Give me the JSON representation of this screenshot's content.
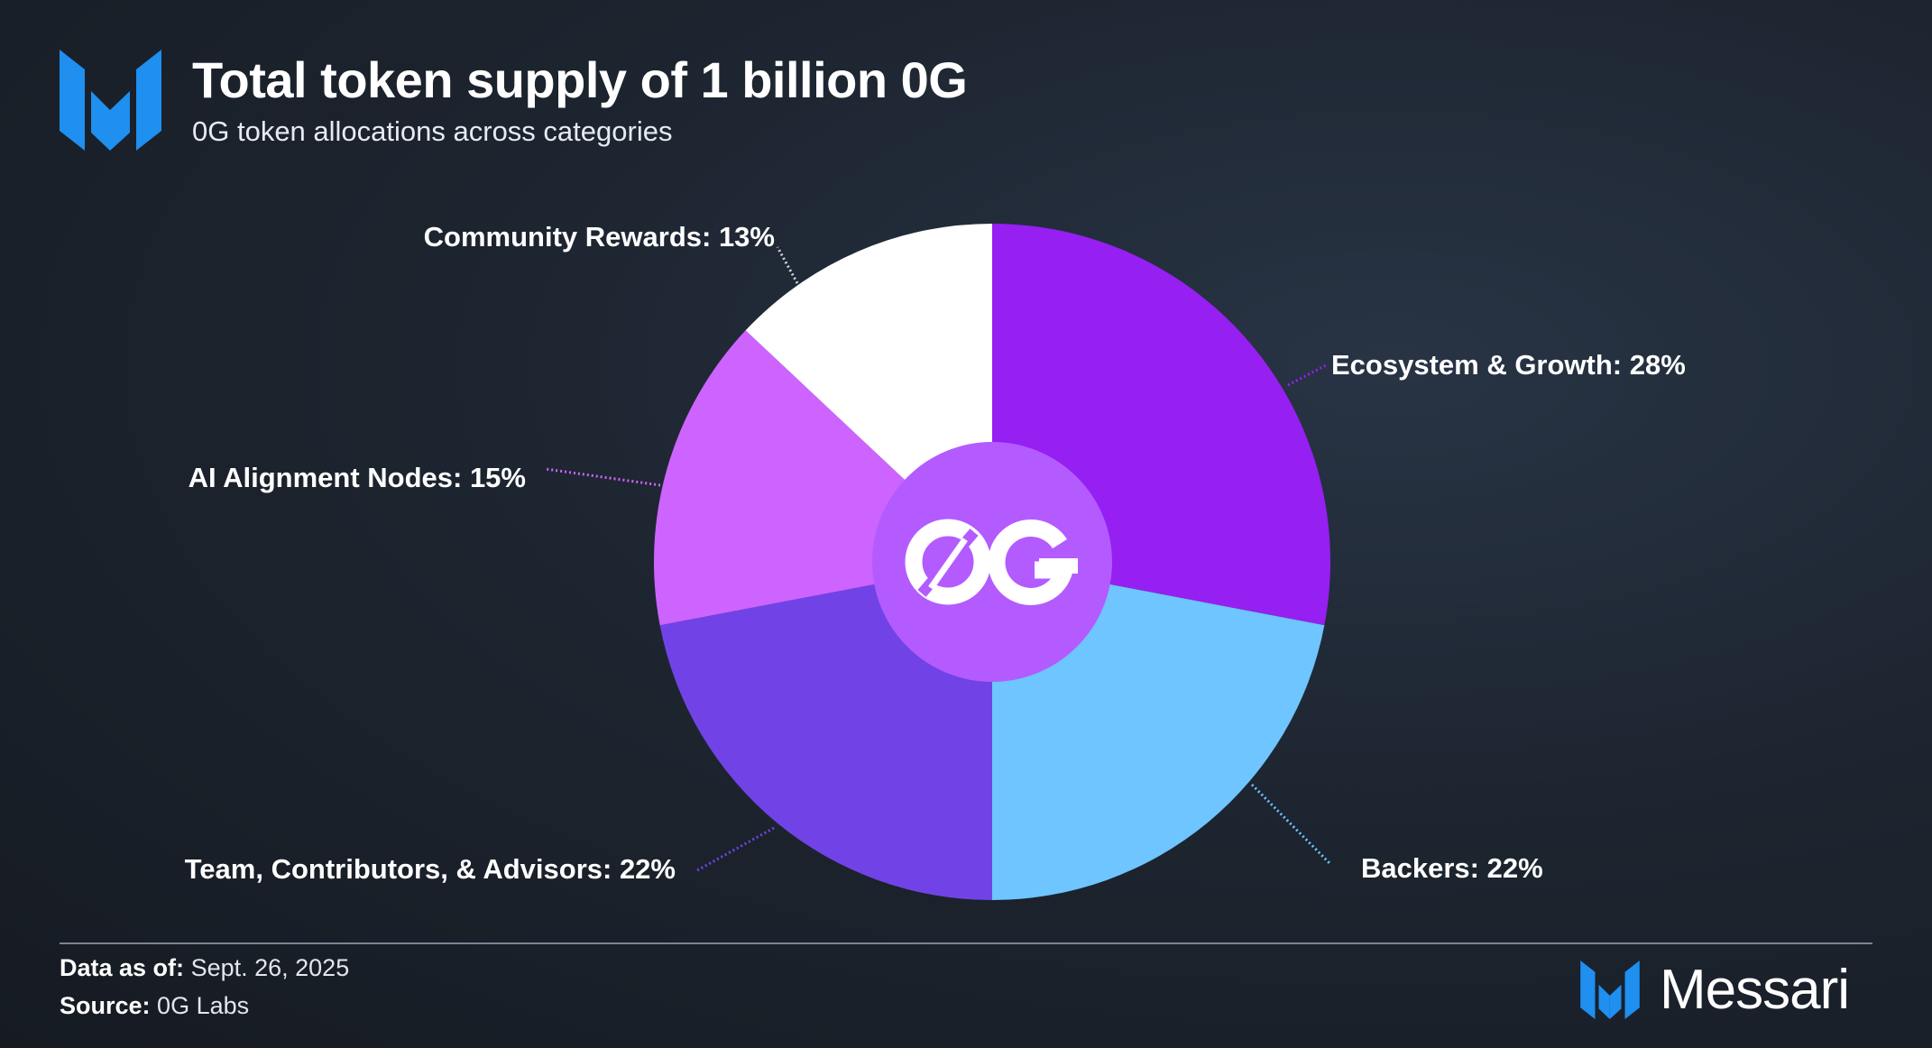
{
  "header": {
    "title": "Total token supply of 1 billion 0G",
    "subtitle": "0G token allocations across categories"
  },
  "chart_data": {
    "type": "pie",
    "title": "Total token supply of 1 billion 0G",
    "subtitle": "0G token allocations across categories",
    "center_logo_text": "0G",
    "slices": [
      {
        "label": "Ecosystem & Growth: 28%",
        "name": "Ecosystem & Growth",
        "value": 28,
        "color": "#961ff2"
      },
      {
        "label": "Backers: 22%",
        "name": "Backers",
        "value": 22,
        "color": "#6ec5ff"
      },
      {
        "label": "Team, Contributors, & Advisors: 22%",
        "name": "Team, Contributors, & Advisors",
        "value": 22,
        "color": "#7143e6"
      },
      {
        "label": "AI Alignment Nodes: 15%",
        "name": "AI Alignment Nodes",
        "value": 15,
        "color": "#cd64ff"
      },
      {
        "label": "Community Rewards: 13%",
        "name": "Community Rewards",
        "value": 13,
        "color": "#ffffff"
      }
    ],
    "center_color": "#b35bff"
  },
  "footer": {
    "date_label": "Data as of:",
    "date_value": "Sept. 26, 2025",
    "source_label": "Source:",
    "source_value": "0G Labs",
    "brand": "Messari"
  },
  "colors": {
    "brand_blue": "#1f8ff0",
    "divider": "#7a8494"
  }
}
